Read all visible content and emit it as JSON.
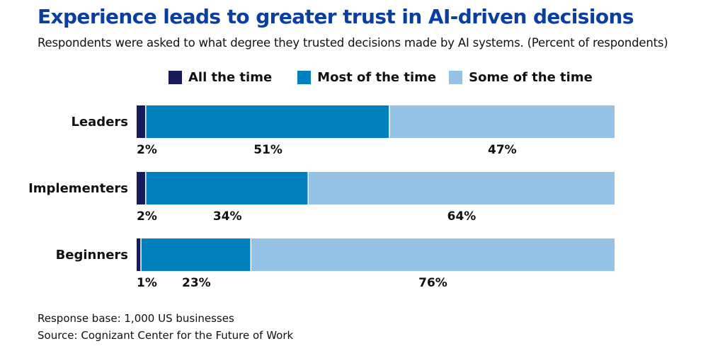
{
  "chart_data": {
    "type": "bar",
    "orientation": "horizontal",
    "stacked": true,
    "title": "Experience leads to greater trust in AI-driven decisions",
    "subtitle": "Respondents were asked to what degree they trusted decisions made by AI systems. (Percent of respondents)",
    "categories": [
      "Leaders",
      "Implementers",
      "Beginners"
    ],
    "series": [
      {
        "name": "All the time",
        "color": "#161a5a",
        "values": [
          2,
          2,
          1
        ]
      },
      {
        "name": "Most of the time",
        "color": "#0081be",
        "values": [
          51,
          34,
          23
        ]
      },
      {
        "name": "Some of the time",
        "color": "#96c3e5",
        "values": [
          47,
          64,
          76
        ]
      }
    ],
    "value_suffix": "%",
    "xlim": [
      0,
      100
    ],
    "xlabel": "",
    "ylabel": "",
    "grid": false,
    "legend_position": "top-center",
    "data_labels_position": "below-segment"
  },
  "footer": {
    "base": "Response base: 1,000 US businesses",
    "source": "Source: Cognizant Center for the Future of Work"
  }
}
